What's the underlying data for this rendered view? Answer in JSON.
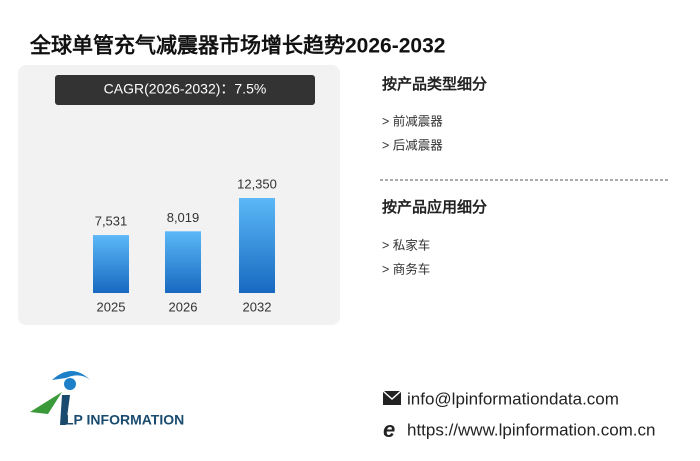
{
  "chart_data": {
    "type": "bar",
    "title": "全球单管充气减震器市场增长趋势2026-2032",
    "annotation": "CAGR(2026-2032)：7.5%",
    "categories": [
      "2025",
      "2026",
      "2032"
    ],
    "values": [
      7531,
      8019,
      12350
    ],
    "value_labels": [
      "7,531",
      "8,019",
      "12,350"
    ],
    "color": "#2f8fe0"
  },
  "segments": [
    {
      "title": "按产品类型细分",
      "items": [
        "> 前减震器",
        "> 后减震器"
      ]
    },
    {
      "title": "按产品应用细分",
      "items": [
        "> 私家车",
        "> 商务车"
      ]
    }
  ],
  "logo": {
    "text": "LP INFORMATION"
  },
  "contact": {
    "email": "info@lpinformationdata.com",
    "website": "https://www.lpinformation.com.cn"
  }
}
